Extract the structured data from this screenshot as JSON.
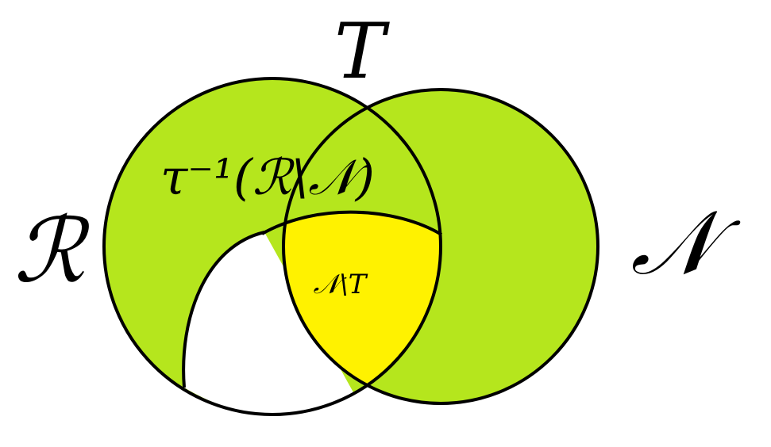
{
  "diagram": {
    "labels": {
      "top_set": "T",
      "left_set": "ℛ",
      "right_set": "𝒩",
      "preimage_region": "τ⁻¹(ℛ\\𝒩)",
      "yellow_region": "𝒩\\T"
    },
    "colors": {
      "green": "#B5E61D",
      "yellow": "#FFF200",
      "white": "#FFFFFF",
      "outline": "#000000"
    }
  }
}
